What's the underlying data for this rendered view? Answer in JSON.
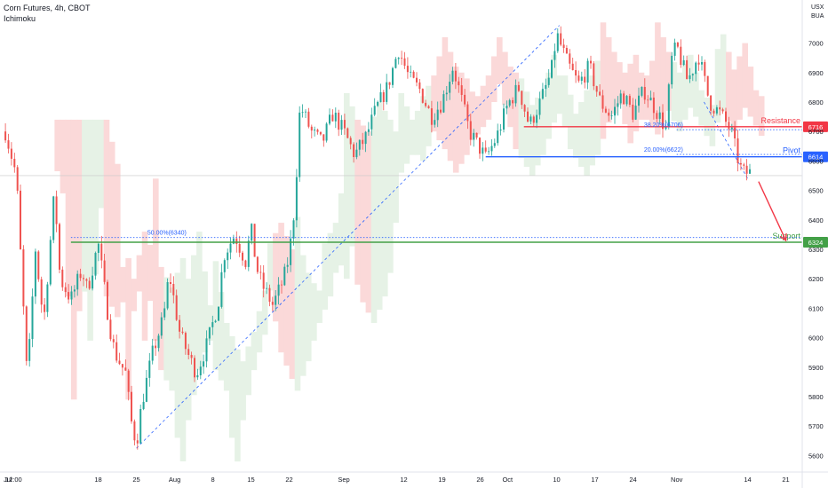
{
  "header": {
    "title": "Corn Futures, 4h, CBOT",
    "indicator": "Ichimoku",
    "currency_line1": "USX",
    "currency_line2": "BUA"
  },
  "colors": {
    "background": "#ffffff",
    "up": "#26a69a",
    "down": "#ef5350",
    "resistance": "#f23645",
    "pivot": "#2962ff",
    "support": "#43a047",
    "fib": "#2962ff",
    "trendline": "#2962ff",
    "cloud_bear": "#fbd9d9",
    "cloud_bull": "#e6f2e6"
  },
  "chart_data": {
    "type": "candlestick",
    "title": "Corn Futures, 4h, CBOT",
    "ylim": [
      5550,
      7080
    ],
    "y_ticks": [
      "5600",
      "5700",
      "5800",
      "5900",
      "6000",
      "6100",
      "6200",
      "6300",
      "6400",
      "6500",
      "6600",
      "6700",
      "6800",
      "6900",
      "7000"
    ],
    "y_tick_values": [
      5600,
      5700,
      5800,
      5900,
      6000,
      6100,
      6200,
      6300,
      6400,
      6500,
      6600,
      6700,
      6800,
      6900,
      7000
    ],
    "x_ticks": [
      {
        "label": "Jul",
        "day": 1
      },
      {
        "label": "12:00",
        "day": 2.5
      },
      {
        "label": "18",
        "day": 18
      },
      {
        "label": "25",
        "day": 25
      },
      {
        "label": "Aug",
        "day": 32
      },
      {
        "label": "8",
        "day": 39
      },
      {
        "label": "15",
        "day": 46
      },
      {
        "label": "22",
        "day": 53
      },
      {
        "label": "Sep",
        "day": 63
      },
      {
        "label": "12",
        "day": 74
      },
      {
        "label": "19",
        "day": 81
      },
      {
        "label": "26",
        "day": 88
      },
      {
        "label": "Oct",
        "day": 93
      },
      {
        "label": "10",
        "day": 102
      },
      {
        "label": "17",
        "day": 109
      },
      {
        "label": "24",
        "day": 116
      },
      {
        "label": "Nov",
        "day": 124
      },
      {
        "label": "14",
        "day": 137
      },
      {
        "label": "21",
        "day": 144
      }
    ],
    "price_path": [
      [
        1,
        6700
      ],
      [
        3,
        6550
      ],
      [
        5,
        5850
      ],
      [
        6.5,
        6300
      ],
      [
        8,
        6050
      ],
      [
        10,
        6500
      ],
      [
        11,
        6200
      ],
      [
        13,
        6130
      ],
      [
        15,
        6230
      ],
      [
        16,
        6160
      ],
      [
        18,
        6320
      ],
      [
        20,
        6050
      ],
      [
        21,
        5950
      ],
      [
        23,
        5880
      ],
      [
        24,
        5720
      ],
      [
        25,
        5640
      ],
      [
        26,
        5780
      ],
      [
        28,
        5950
      ],
      [
        30,
        6070
      ],
      [
        31,
        6220
      ],
      [
        33,
        6010
      ],
      [
        35,
        5920
      ],
      [
        36,
        5880
      ],
      [
        38,
        5980
      ],
      [
        40,
        6120
      ],
      [
        41,
        6280
      ],
      [
        43,
        6350
      ],
      [
        45,
        6260
      ],
      [
        46,
        6370
      ],
      [
        47,
        6240
      ],
      [
        48,
        6180
      ],
      [
        50,
        6110
      ],
      [
        52,
        6200
      ],
      [
        53,
        6280
      ],
      [
        54,
        6450
      ],
      [
        55,
        6790
      ],
      [
        57,
        6700
      ],
      [
        59,
        6660
      ],
      [
        61,
        6760
      ],
      [
        63,
        6700
      ],
      [
        65,
        6620
      ],
      [
        67,
        6680
      ],
      [
        69,
        6780
      ],
      [
        71,
        6850
      ],
      [
        73,
        6980
      ],
      [
        75,
        6880
      ],
      [
        77,
        6840
      ],
      [
        79,
        6750
      ],
      [
        81,
        6800
      ],
      [
        83,
        6920
      ],
      [
        84,
        6850
      ],
      [
        86,
        6700
      ],
      [
        88,
        6640
      ],
      [
        89,
        6610
      ],
      [
        91,
        6680
      ],
      [
        93,
        6790
      ],
      [
        95,
        6850
      ],
      [
        97,
        6720
      ],
      [
        99,
        6800
      ],
      [
        101,
        6900
      ],
      [
        102,
        7030
      ],
      [
        104,
        6930
      ],
      [
        106,
        6860
      ],
      [
        108,
        6920
      ],
      [
        110,
        6800
      ],
      [
        112,
        6750
      ],
      [
        114,
        6830
      ],
      [
        116,
        6760
      ],
      [
        118,
        6840
      ],
      [
        120,
        6780
      ],
      [
        122,
        6710
      ],
      [
        123,
        6940
      ],
      [
        124,
        6990
      ],
      [
        126,
        6870
      ],
      [
        128,
        6960
      ],
      [
        130,
        6800
      ],
      [
        132,
        6760
      ],
      [
        134,
        6700
      ],
      [
        135,
        6620
      ],
      [
        136,
        6560
      ],
      [
        137.5,
        6560
      ]
    ],
    "levels": {
      "resistance": {
        "label": "Resistance",
        "value": 6716,
        "badge": "6716"
      },
      "pivot": {
        "label": "Pivot",
        "value": 6614,
        "badge": "6614"
      },
      "support": {
        "label": "Support",
        "value": 6324,
        "badge": "6324"
      }
    },
    "fib_levels": [
      {
        "label": "38.20%(6706)",
        "value": 6706
      },
      {
        "label": "20.00%(6622)",
        "value": 6622
      },
      {
        "label": "50.00%(6340)",
        "value": 6340
      }
    ],
    "current_price_marker": 6550,
    "forecast_arrow": {
      "from_day": 139,
      "from_value": 6530,
      "to_day": 144,
      "to_value": 6330
    },
    "legend": "top-left",
    "grid": false
  }
}
